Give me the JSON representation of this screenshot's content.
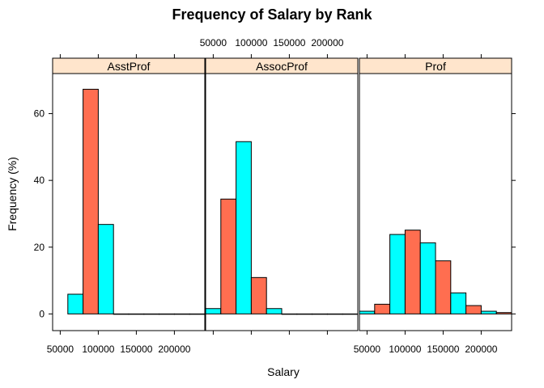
{
  "chart_data": {
    "type": "bar",
    "title": "Frequency of Salary by Rank",
    "xlabel": "Salary",
    "ylabel": "Frequency (%)",
    "xlim": [
      40000,
      240000
    ],
    "ylim": [
      -5,
      72
    ],
    "x_ticks": [
      50000,
      100000,
      150000,
      200000
    ],
    "x_tick_labels": [
      "50000",
      "100000",
      "150000",
      "200000"
    ],
    "y_ticks": [
      0,
      20,
      40,
      60
    ],
    "y_tick_labels": [
      "0",
      "20",
      "40",
      "60"
    ],
    "bin_width": 20000,
    "colors": {
      "cyan": "#00FFFF",
      "salmon": "#FF6E50",
      "strip": "#FFE5CC",
      "outline": "#000000"
    },
    "panels": [
      {
        "name": "AsstProf",
        "bins": [
          {
            "x0": 60000,
            "x1": 80000,
            "value": 5.9,
            "color": "cyan"
          },
          {
            "x0": 80000,
            "x1": 100000,
            "value": 67.3,
            "color": "salmon"
          },
          {
            "x0": 100000,
            "x1": 120000,
            "value": 26.8,
            "color": "cyan"
          },
          {
            "x0": 120000,
            "x1": 140000,
            "value": 0,
            "color": "salmon"
          },
          {
            "x0": 140000,
            "x1": 160000,
            "value": 0,
            "color": "cyan"
          },
          {
            "x0": 160000,
            "x1": 180000,
            "value": 0,
            "color": "salmon"
          },
          {
            "x0": 180000,
            "x1": 200000,
            "value": 0,
            "color": "cyan"
          },
          {
            "x0": 200000,
            "x1": 220000,
            "value": 0,
            "color": "salmon"
          },
          {
            "x0": 220000,
            "x1": 240000,
            "value": 0,
            "color": "cyan"
          }
        ]
      },
      {
        "name": "AssocProf",
        "bins": [
          {
            "x0": 40000,
            "x1": 60000,
            "value": 1.6,
            "color": "cyan"
          },
          {
            "x0": 60000,
            "x1": 80000,
            "value": 34.4,
            "color": "salmon"
          },
          {
            "x0": 80000,
            "x1": 100000,
            "value": 51.6,
            "color": "cyan"
          },
          {
            "x0": 100000,
            "x1": 120000,
            "value": 10.9,
            "color": "salmon"
          },
          {
            "x0": 120000,
            "x1": 140000,
            "value": 1.6,
            "color": "cyan"
          },
          {
            "x0": 140000,
            "x1": 160000,
            "value": 0,
            "color": "salmon"
          },
          {
            "x0": 160000,
            "x1": 180000,
            "value": 0,
            "color": "cyan"
          },
          {
            "x0": 180000,
            "x1": 200000,
            "value": 0,
            "color": "salmon"
          },
          {
            "x0": 200000,
            "x1": 220000,
            "value": 0,
            "color": "cyan"
          },
          {
            "x0": 220000,
            "x1": 240000,
            "value": 0,
            "color": "salmon"
          }
        ]
      },
      {
        "name": "Prof",
        "bins": [
          {
            "x0": 40000,
            "x1": 60000,
            "value": 0.8,
            "color": "cyan"
          },
          {
            "x0": 60000,
            "x1": 80000,
            "value": 2.9,
            "color": "salmon"
          },
          {
            "x0": 80000,
            "x1": 100000,
            "value": 23.8,
            "color": "cyan"
          },
          {
            "x0": 100000,
            "x1": 120000,
            "value": 25.1,
            "color": "salmon"
          },
          {
            "x0": 120000,
            "x1": 140000,
            "value": 21.3,
            "color": "cyan"
          },
          {
            "x0": 140000,
            "x1": 160000,
            "value": 15.9,
            "color": "salmon"
          },
          {
            "x0": 160000,
            "x1": 180000,
            "value": 6.3,
            "color": "cyan"
          },
          {
            "x0": 180000,
            "x1": 200000,
            "value": 2.5,
            "color": "salmon"
          },
          {
            "x0": 200000,
            "x1": 220000,
            "value": 0.8,
            "color": "cyan"
          },
          {
            "x0": 220000,
            "x1": 240000,
            "value": 0.4,
            "color": "salmon"
          }
        ]
      }
    ]
  }
}
